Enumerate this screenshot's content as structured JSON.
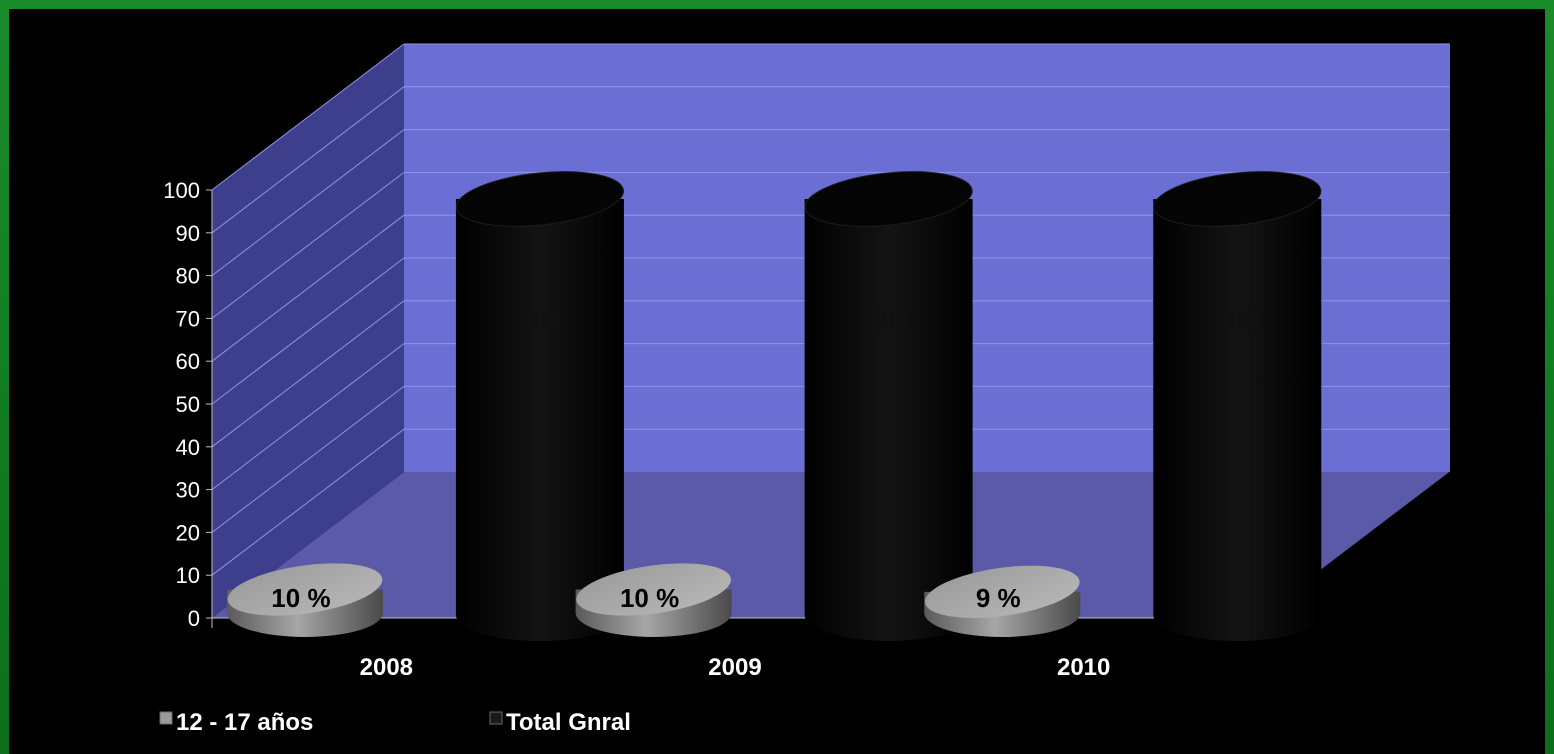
{
  "chart_data": {
    "type": "bar",
    "style": "3d-cylinder",
    "categories": [
      "2008",
      "2009",
      "2010"
    ],
    "series": [
      {
        "name": "12 - 17 años",
        "values": [
          10,
          10,
          9
        ],
        "labels": [
          "10 %",
          "10 %",
          "9 %"
        ],
        "color": "#8a8a8a"
      },
      {
        "name": "Total Gnral",
        "values": [
          100,
          100,
          100
        ],
        "color": "#0a0a0a"
      }
    ],
    "ylim": [
      0,
      100
    ],
    "yticks": [
      "0",
      "10",
      "20",
      "30",
      "40",
      "50",
      "60",
      "70",
      "80",
      "90",
      "100"
    ],
    "grid": true,
    "legend": "bottom-left",
    "colors": {
      "wall": "#6b6fd4",
      "side_wall": "#3e3f8c",
      "floor": "#5a5aa8",
      "background": "#000000",
      "frame": "#0f7a20"
    }
  }
}
